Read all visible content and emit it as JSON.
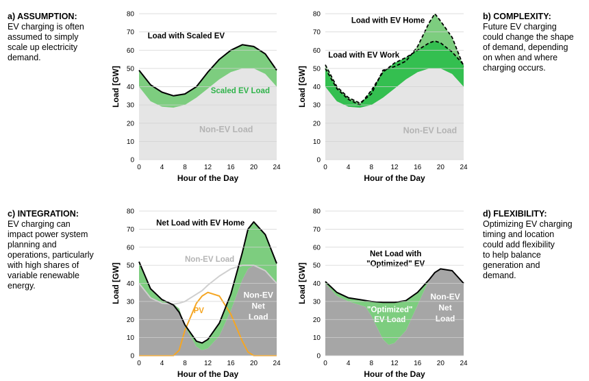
{
  "panels": [
    {
      "heading": "a) ASSUMPTION:",
      "body": "EV charging is often\nassumed to simply\nscale up electricity\ndemand.",
      "chart_data": {
        "type": "area",
        "xlabel": "Hour of the Day",
        "ylabel": "Load [GW]",
        "xlim": [
          0,
          24
        ],
        "ylim": [
          0,
          80
        ],
        "xticks": [
          0,
          4,
          8,
          12,
          16,
          20,
          24
        ],
        "yticks": [
          0,
          10,
          20,
          30,
          40,
          50,
          60,
          70,
          80
        ],
        "x": [
          0,
          2,
          4,
          6,
          8,
          10,
          12,
          14,
          16,
          18,
          20,
          22,
          24
        ],
        "series": [
          {
            "name": "Non-EV Load",
            "values": [
              40,
              32,
              29,
              28.5,
              30,
              34,
              39,
              44,
              48,
              50,
              50,
              47,
              40
            ]
          },
          {
            "name": "Load with Scaled EV",
            "values": [
              49,
              41,
              37,
              35,
              36,
              40,
              48,
              55,
              60,
              63,
              62,
              58,
              49
            ]
          }
        ],
        "annotations": [
          "Load with Scaled EV",
          "Scaled EV Load",
          "Non-EV Load"
        ]
      }
    },
    {
      "heading": "b) COMPLEXITY:",
      "body": "Future EV charging\ncould change the shape\nof demand, depending\non when and where\ncharging occurs.",
      "chart_data": {
        "type": "area",
        "xlabel": "Hour of the Day",
        "ylabel": "Load [GW]",
        "xlim": [
          0,
          24
        ],
        "ylim": [
          0,
          80
        ],
        "xticks": [
          0,
          4,
          8,
          12,
          16,
          20,
          24
        ],
        "yticks": [
          0,
          10,
          20,
          30,
          40,
          50,
          60,
          70,
          80
        ],
        "x": [
          0,
          2,
          4,
          6,
          8,
          10,
          12,
          14,
          16,
          18,
          19,
          20,
          22,
          24
        ],
        "series": [
          {
            "name": "Non-EV Load",
            "values": [
              40,
              32,
              29,
              28.5,
              30,
              34,
              39,
              44,
              48,
              50,
              50,
              50,
              47,
              40
            ]
          },
          {
            "name": "Load with EV Work",
            "values": [
              50,
              39,
              33,
              30,
              38,
              48,
              53,
              56,
              60,
              64,
              65,
              64,
              59,
              52
            ]
          },
          {
            "name": "Load with EV Home",
            "values": [
              52,
              40,
              34,
              31,
              36,
              49,
              51,
              54,
              62,
              75,
              80,
              76,
              67,
              51
            ]
          }
        ],
        "annotations": [
          "Load with EV Home",
          "Load with EV Work",
          "Non-EV Load"
        ]
      }
    },
    {
      "heading": "c) INTEGRATION:",
      "body": "EV charging can\nimpact power system\nplanning and\noperations, particularly\nwith high shares of\nvariable renewable\nenergy.",
      "chart_data": {
        "type": "area",
        "xlabel": "Hour of the Day",
        "ylabel": "Load [GW]",
        "xlim": [
          0,
          24
        ],
        "ylim": [
          0,
          80
        ],
        "xticks": [
          0,
          4,
          8,
          12,
          16,
          20,
          24
        ],
        "yticks": [
          0,
          10,
          20,
          30,
          40,
          50,
          60,
          70,
          80
        ],
        "x": [
          0,
          2,
          4,
          6,
          7,
          8,
          10,
          11,
          12,
          14,
          16,
          18,
          19,
          20,
          22,
          24
        ],
        "series": [
          {
            "name": "Non-EV Load",
            "values": [
              40,
              32,
              29,
              28.5,
              29,
              30,
              34,
              36,
              39,
              44,
              48,
              50,
              50,
              50,
              47,
              40
            ]
          },
          {
            "name": "PV",
            "values": [
              0,
              0,
              0,
              0,
              3,
              14,
              29,
              33,
              35,
              33,
              23,
              8,
              2,
              0,
              0,
              0
            ]
          },
          {
            "name": "Net Load with EV Home",
            "values": [
              52,
              37,
              31,
              28,
              24,
              17,
              8,
              7,
              9,
              18,
              34,
              57,
              70,
              74,
              67,
              51
            ]
          }
        ],
        "annotations": [
          "Net Load with EV Home",
          "Non-EV Load",
          "PV",
          "Non-EV",
          "Net",
          "Load"
        ]
      }
    },
    {
      "heading": "d) FLEXIBILITY:",
      "body": "Optimizing EV charging\ntiming and location\ncould add flexibility\nto help balance\ngeneration and\ndemand.",
      "chart_data": {
        "type": "area",
        "xlabel": "Hour of the Day",
        "ylabel": "Load [GW]",
        "xlim": [
          0,
          24
        ],
        "ylim": [
          0,
          80
        ],
        "xticks": [
          0,
          4,
          8,
          12,
          16,
          20,
          24
        ],
        "yticks": [
          0,
          10,
          20,
          30,
          40,
          50,
          60,
          70,
          80
        ],
        "x": [
          0,
          2,
          4,
          6,
          7,
          8,
          10,
          11,
          12,
          14,
          16,
          18,
          19,
          20,
          22,
          24
        ],
        "series": [
          {
            "name": "Non-EV Net Load",
            "values": [
              40,
              33,
              30,
              28,
              27,
              22,
              9,
              6,
              7,
              14,
              28,
              42,
              46,
              48,
              47,
              40
            ]
          },
          {
            "name": "Net Load with \"Optimized\" EV",
            "values": [
              41,
              35,
              32,
              31,
              30.5,
              30,
              29.5,
              29.5,
              29.5,
              30.5,
              35,
              42,
              46,
              48,
              47,
              40
            ]
          }
        ],
        "annotations": [
          "Net Load with",
          "\"Optimized\" EV",
          "\"Optimized\"",
          "EV Load",
          "Non-EV",
          "Net",
          "Load"
        ]
      }
    }
  ],
  "colors": {
    "green_light": "#7dcd7f",
    "green_dark": "#34bf50",
    "gray_light": "#e5e5e5",
    "gray_dark": "#a6a6a6",
    "pv": "#f5a623",
    "non_ev_line": "#cfcfcf",
    "grid": "#d2d2d2",
    "scaled_label": "#2fb34a",
    "non_ev_label": "#b4b4b4",
    "white_label": "#ffffff",
    "line": "#000000"
  }
}
